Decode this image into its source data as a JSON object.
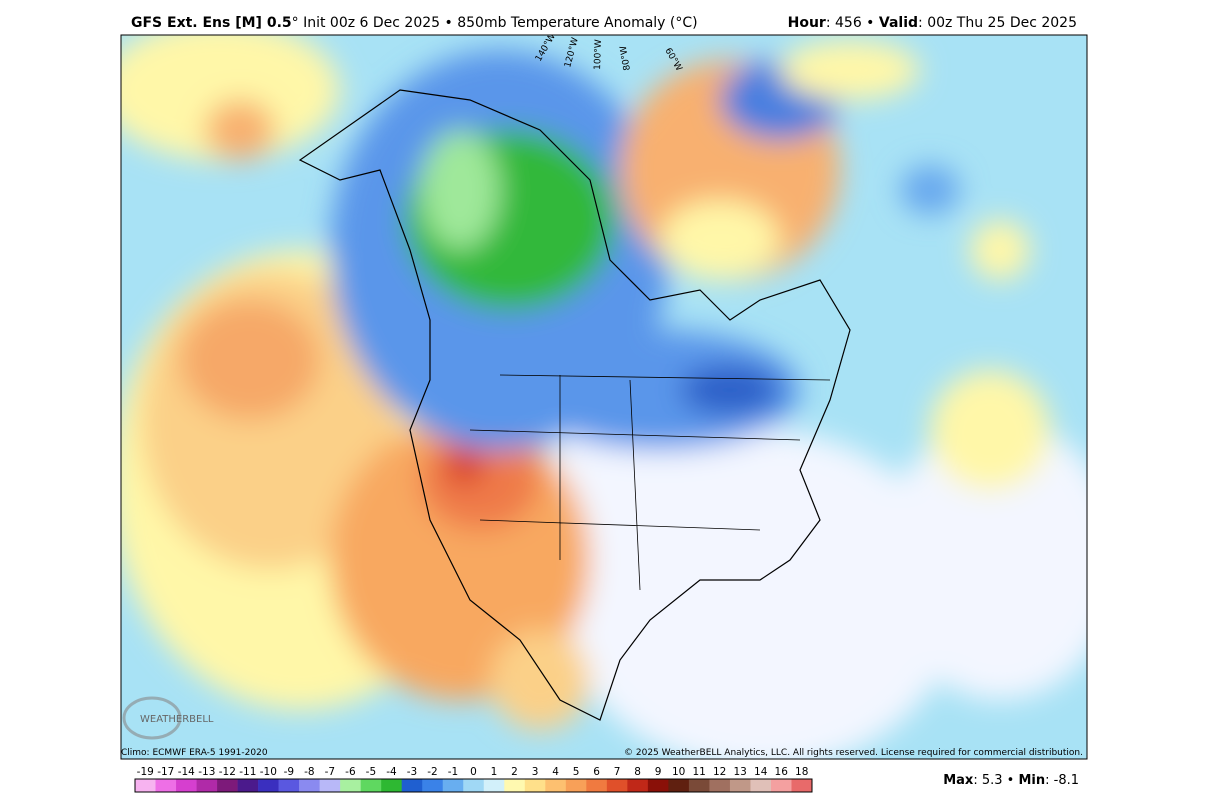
{
  "header": {
    "model": "GFS Ext.  Ens [M] 0.5",
    "details": "° Init 00z 6 Dec 2025 • 850mb Temperature Anomaly (°C)",
    "hour_key": "Hour",
    "hour_value": ": 456 • ",
    "valid_key": "Valid",
    "valid_value": ": 00z Thu 25 Dec 2025"
  },
  "map": {
    "meridians": [
      "140°W",
      "120°W",
      "100°W",
      "80°W",
      "60°W"
    ],
    "climo": "Climo: ECMWF ERA-5 1991-2020",
    "copyright": "© 2025 WeatherBELL Analytics, LLC. All rights reserved. License required for commercial distribution.",
    "logo": "WEATHERBELL"
  },
  "colorbar": {
    "levels": [
      -19,
      -17,
      -14,
      -13,
      -12,
      -11,
      -10,
      -9,
      -8,
      -7,
      -6,
      -5,
      -4,
      -3,
      -2,
      -1,
      0,
      1,
      2,
      3,
      4,
      5,
      6,
      7,
      8,
      9,
      10,
      11,
      12,
      13,
      14,
      16,
      18
    ],
    "colors": [
      "#f7b3f0",
      "#ee6fe6",
      "#d63fcf",
      "#b02aa8",
      "#7d1a7a",
      "#4b1a8c",
      "#3a2fbf",
      "#5a58e0",
      "#8a8af0",
      "#b8b8f8",
      "#a8f0a0",
      "#5fd860",
      "#2eb832",
      "#1f5fd0",
      "#3a82e8",
      "#68aef0",
      "#a0d8f5",
      "#d2f0fa",
      "#fff9b0",
      "#ffe08a",
      "#fdc070",
      "#f8a058",
      "#f07a40",
      "#e0502a",
      "#c02818",
      "#8a1008",
      "#602010",
      "#7a4a38",
      "#a07060",
      "#c09888",
      "#e0c0b8",
      "#f4a0a0",
      "#e86a6a"
    ]
  },
  "summary": {
    "max_key": "Max",
    "max_value": ": 5.3 • ",
    "min_key": "Min",
    "min_value": ": -8.1"
  }
}
